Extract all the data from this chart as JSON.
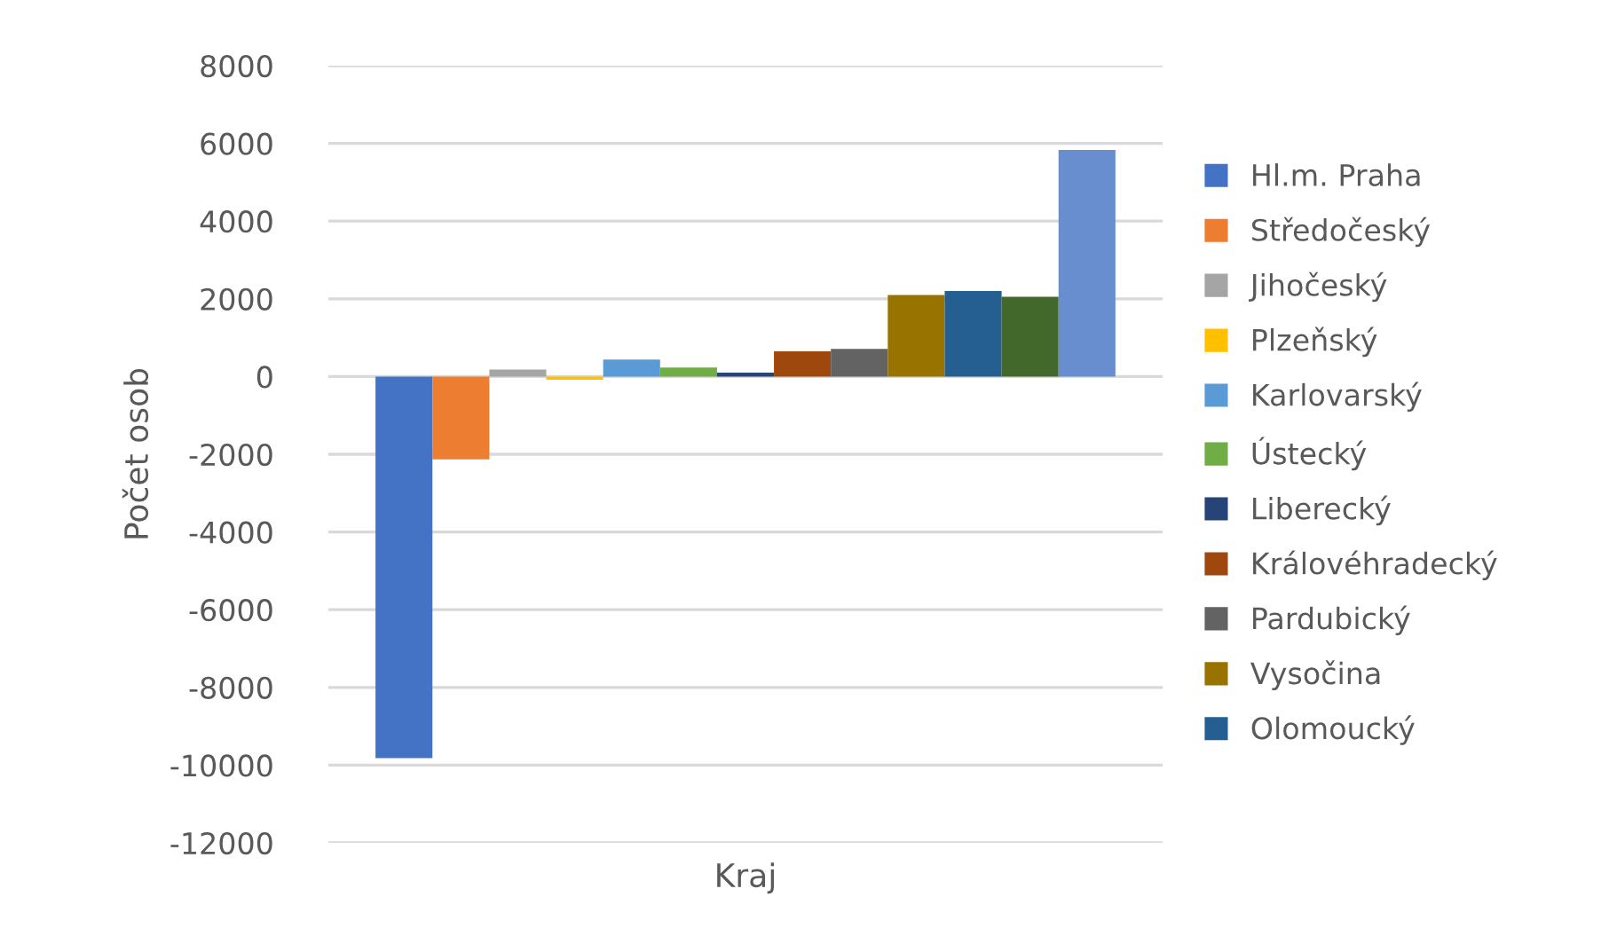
{
  "chart_data": {
    "type": "bar",
    "categories": [
      "Kraj"
    ],
    "ylabel": "Počet osob",
    "ylim": [
      -12000,
      8000
    ],
    "yticks": [
      -12000,
      -10000,
      -8000,
      -6000,
      -4000,
      -2000,
      0,
      2000,
      4000,
      6000,
      8000
    ],
    "grid": "y",
    "legend": "right",
    "series": [
      {
        "name": "Hl.m. Praha",
        "color": "#4472c4",
        "values": [
          -9820
        ]
      },
      {
        "name": "Středočeský",
        "color": "#ed7d31",
        "values": [
          -2130
        ]
      },
      {
        "name": "Jihočeský",
        "color": "#a5a5a5",
        "values": [
          180
        ]
      },
      {
        "name": "Plzeňský",
        "color": "#ffc000",
        "values": [
          -80
        ]
      },
      {
        "name": "Karlovarský",
        "color": "#5b9bd5",
        "values": [
          440
        ]
      },
      {
        "name": "Ústecký",
        "color": "#70ad47",
        "values": [
          230
        ]
      },
      {
        "name": "Liberecký",
        "color": "#264478",
        "values": [
          100
        ]
      },
      {
        "name": "Královéhradecký",
        "color": "#9e480e",
        "values": [
          650
        ]
      },
      {
        "name": "Pardubický",
        "color": "#636363",
        "values": [
          710
        ]
      },
      {
        "name": "Vysočina",
        "color": "#997300",
        "values": [
          2100
        ]
      },
      {
        "name": "Olomoucký",
        "color": "#255e91",
        "values": [
          2200
        ]
      },
      {
        "color": "#43682b",
        "values": [
          2050
        ]
      },
      {
        "color": "#698ed0",
        "values": [
          5830
        ]
      }
    ]
  }
}
